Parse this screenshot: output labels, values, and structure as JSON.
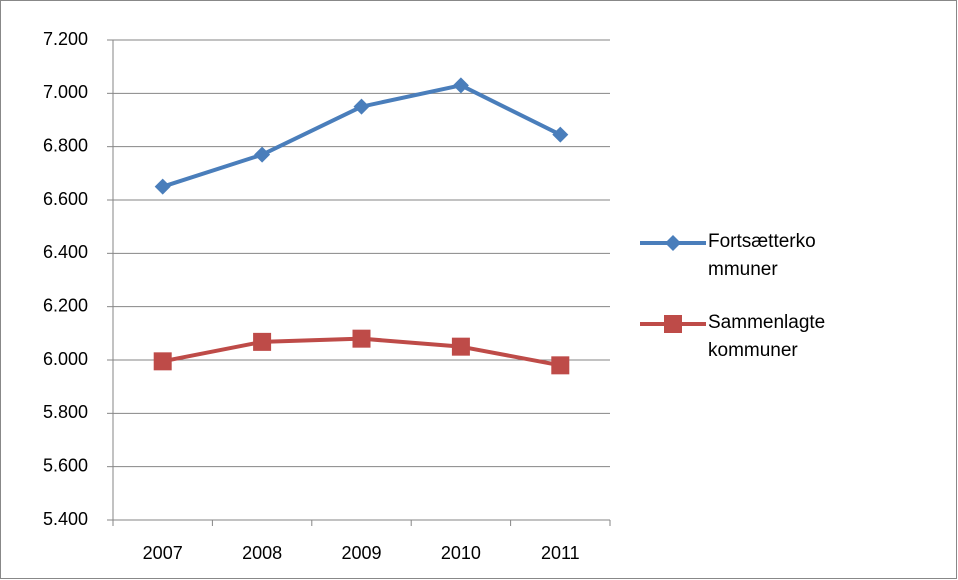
{
  "chart_data": {
    "type": "line",
    "categories": [
      "2007",
      "2008",
      "2009",
      "2010",
      "2011"
    ],
    "series": [
      {
        "name": "Fortsætterkommuner",
        "color": "#4a7ebb",
        "marker": "diamond",
        "values": [
          6650,
          6770,
          6950,
          7030,
          6845
        ]
      },
      {
        "name": "Sammenlagte kommuner",
        "color": "#be4b48",
        "marker": "square",
        "values": [
          5995,
          6068,
          6080,
          6050,
          5980
        ]
      }
    ],
    "ylim": [
      5400,
      7200
    ],
    "yticks": [
      {
        "value": 5400,
        "label": "5.400"
      },
      {
        "value": 5600,
        "label": "5.600"
      },
      {
        "value": 5800,
        "label": "5.800"
      },
      {
        "value": 6000,
        "label": "6.000"
      },
      {
        "value": 6200,
        "label": "6.200"
      },
      {
        "value": 6400,
        "label": "6.400"
      },
      {
        "value": 6600,
        "label": "6.600"
      },
      {
        "value": 6800,
        "label": "6.800"
      },
      {
        "value": 7000,
        "label": "7.000"
      },
      {
        "value": 7200,
        "label": "7.200"
      }
    ],
    "grid": true,
    "legend": "right"
  }
}
